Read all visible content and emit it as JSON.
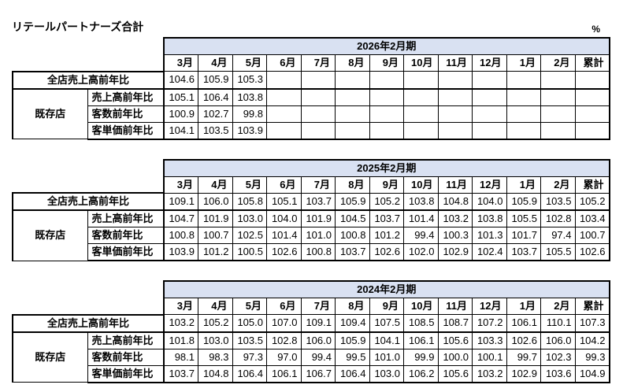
{
  "page": {
    "title": "リテールパートナーズ合計",
    "unit_label": "%"
  },
  "columns": {
    "months": [
      "3月",
      "4月",
      "5月",
      "6月",
      "7月",
      "8月",
      "9月",
      "10月",
      "11月",
      "12月",
      "1月",
      "2月",
      "累計"
    ]
  },
  "row_labels": {
    "all_store": "全店売上高前年比",
    "existing_group": "既存店",
    "existing_rows": [
      "売上高前年比",
      "客数前年比",
      "客単価前年比"
    ]
  },
  "tables": [
    {
      "period": "2026年2月期",
      "all_store": [
        "104.6",
        "105.9",
        "105.3",
        "",
        "",
        "",
        "",
        "",
        "",
        "",
        "",
        "",
        ""
      ],
      "existing": [
        [
          "105.1",
          "106.4",
          "103.8",
          "",
          "",
          "",
          "",
          "",
          "",
          "",
          "",
          "",
          ""
        ],
        [
          "100.9",
          "102.7",
          "99.8",
          "",
          "",
          "",
          "",
          "",
          "",
          "",
          "",
          "",
          ""
        ],
        [
          "104.1",
          "103.5",
          "103.9",
          "",
          "",
          "",
          "",
          "",
          "",
          "",
          "",
          "",
          ""
        ]
      ]
    },
    {
      "period": "2025年2月期",
      "all_store": [
        "109.1",
        "106.0",
        "105.8",
        "105.1",
        "103.7",
        "105.9",
        "105.2",
        "103.8",
        "104.8",
        "104.0",
        "105.9",
        "103.5",
        "105.2"
      ],
      "existing": [
        [
          "104.7",
          "101.9",
          "103.0",
          "104.0",
          "101.9",
          "104.5",
          "103.7",
          "101.4",
          "103.2",
          "103.8",
          "105.5",
          "102.8",
          "103.4"
        ],
        [
          "100.8",
          "100.7",
          "102.5",
          "101.4",
          "101.0",
          "100.8",
          "101.2",
          "99.4",
          "100.3",
          "101.3",
          "101.7",
          "97.4",
          "100.7"
        ],
        [
          "103.9",
          "101.2",
          "100.5",
          "102.6",
          "100.8",
          "103.7",
          "102.6",
          "102.0",
          "102.9",
          "102.4",
          "103.7",
          "105.5",
          "102.6"
        ]
      ]
    },
    {
      "period": "2024年2月期",
      "all_store": [
        "103.2",
        "105.2",
        "105.0",
        "107.0",
        "109.1",
        "109.4",
        "107.5",
        "108.5",
        "108.7",
        "107.2",
        "106.1",
        "110.1",
        "107.3"
      ],
      "existing": [
        [
          "101.8",
          "103.0",
          "103.5",
          "102.8",
          "106.0",
          "105.9",
          "104.1",
          "106.1",
          "105.6",
          "103.3",
          "102.6",
          "106.0",
          "104.2"
        ],
        [
          "98.1",
          "98.3",
          "97.3",
          "97.0",
          "99.4",
          "99.5",
          "101.0",
          "99.9",
          "100.0",
          "100.1",
          "99.7",
          "102.3",
          "99.3"
        ],
        [
          "103.7",
          "104.8",
          "106.4",
          "106.1",
          "106.7",
          "106.4",
          "103.0",
          "106.2",
          "105.6",
          "103.2",
          "102.9",
          "103.6",
          "104.9"
        ]
      ]
    }
  ],
  "colors": {
    "period_header_fill": "#D9E1F2",
    "border": "#000000"
  }
}
